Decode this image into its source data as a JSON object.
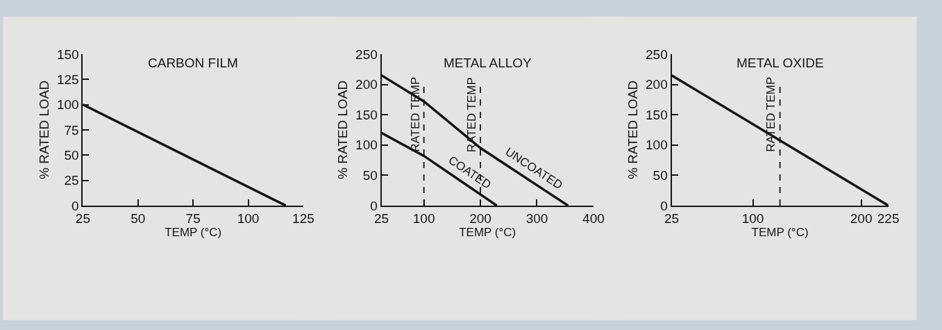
{
  "chart_data": [
    {
      "type": "line",
      "title": "CARBON FILM",
      "xlabel": "TEMP (°C)",
      "ylabel": "% RATED LOAD",
      "xlim": [
        25,
        125
      ],
      "xticks": [
        25,
        50,
        75,
        100,
        125
      ],
      "ylim": [
        0,
        150
      ],
      "yticks": [
        0,
        25,
        50,
        75,
        100,
        125,
        150
      ],
      "grid": false,
      "legend": false,
      "marker": "none",
      "line_style": "solid",
      "series": [
        {
          "color": "#151515",
          "x": [
            25,
            117
          ],
          "values": [
            100,
            0
          ]
        }
      ]
    },
    {
      "type": "line",
      "title": "METAL ALLOY",
      "xlabel": "TEMP (°C)",
      "ylabel": "% RATED LOAD",
      "xlim": [
        25,
        400
      ],
      "xticks": [
        25,
        100,
        200,
        300,
        400
      ],
      "ylim": [
        0,
        250
      ],
      "yticks": [
        0,
        50,
        100,
        150,
        200,
        250
      ],
      "grid": false,
      "legend": false,
      "marker": "none",
      "line_style": "solid",
      "series": [
        {
          "name": "COATED",
          "color": "#151515",
          "x": [
            25,
            100,
            229
          ],
          "values": [
            120,
            82,
            0
          ]
        },
        {
          "name": "UNCOATED",
          "color": "#151515",
          "x": [
            25,
            100,
            200,
            355
          ],
          "values": [
            215,
            172,
            95,
            0
          ]
        }
      ],
      "ref_lines": [
        {
          "axis": "x",
          "value": 100,
          "label": "RATED TEMP",
          "color": "#151515",
          "line_style": "dashed"
        },
        {
          "axis": "x",
          "value": 200,
          "label": "RATED TEMP",
          "color": "#151515",
          "line_style": "dashed"
        }
      ]
    },
    {
      "type": "line",
      "title": "METAL OXIDE",
      "xlabel": "TEMP (°C)",
      "ylabel": "% RATED LOAD",
      "xlim": [
        25,
        225
      ],
      "xticks": [
        25,
        100,
        200,
        225
      ],
      "ylim": [
        0,
        250
      ],
      "yticks": [
        0,
        50,
        100,
        150,
        200,
        250
      ],
      "grid": false,
      "legend": false,
      "marker": "none",
      "line_style": "solid",
      "series": [
        {
          "color": "#151515",
          "x": [
            25,
            225
          ],
          "values": [
            215,
            0
          ]
        }
      ],
      "ref_lines": [
        {
          "axis": "x",
          "value": 125,
          "label": "RATED TEMP",
          "color": "#151515",
          "line_style": "dashed"
        }
      ]
    }
  ]
}
